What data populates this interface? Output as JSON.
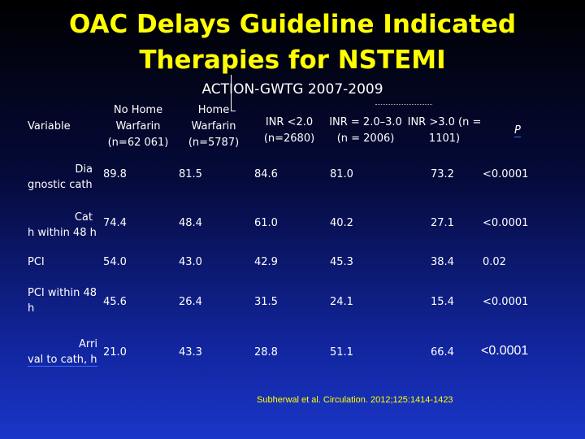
{
  "title_line1": "OAC Delays Guideline Indicated",
  "title_line2": "Therapies for NSTEMI",
  "subtitle": "ACTION-GWTG 2007-2009",
  "headers": {
    "variable": "Variable",
    "col1": [
      "No Home",
      "Warfarin",
      "(n=62 061)"
    ],
    "col2": [
      "Home",
      "Warfarin",
      "(n=5787)"
    ],
    "col3": [
      "INR <2.0",
      "(n=2680)"
    ],
    "col4": [
      "INR = 2.0–3.0",
      "(n = 2006)"
    ],
    "col5": [
      "INR >3.0 (n =",
      "1101)"
    ],
    "col6": "P"
  },
  "rows": [
    {
      "label": [
        "Dia",
        "gnostic cath"
      ],
      "values": [
        "89.8",
        "81.5",
        "84.6",
        "81.0",
        "73.2",
        "<0.0001"
      ]
    },
    {
      "label": [
        "Cat",
        "h within 48 h"
      ],
      "values": [
        "74.4",
        "48.4",
        "61.0",
        "40.2",
        "27.1",
        "<0.0001"
      ]
    },
    {
      "label": [
        "PCI"
      ],
      "values": [
        "54.0",
        "43.0",
        "42.9",
        "45.3",
        "38.4",
        "0.02"
      ]
    },
    {
      "label": [
        "PCI within 48",
        "h"
      ],
      "values": [
        "45.6",
        "26.4",
        "31.5",
        "24.1",
        "15.4",
        "<0.0001"
      ]
    },
    {
      "label": [
        "Arri",
        "val to cath, h"
      ],
      "values": [
        "21.0",
        "43.3",
        "28.8",
        "51.1",
        "66.4",
        "<0.0001"
      ]
    }
  ],
  "citation": "Subherwal et al. Circulation. 2012;125:1414-1423",
  "colors": {
    "title": "#ffff00",
    "text": "#ffffff",
    "citation": "#ffff00"
  }
}
